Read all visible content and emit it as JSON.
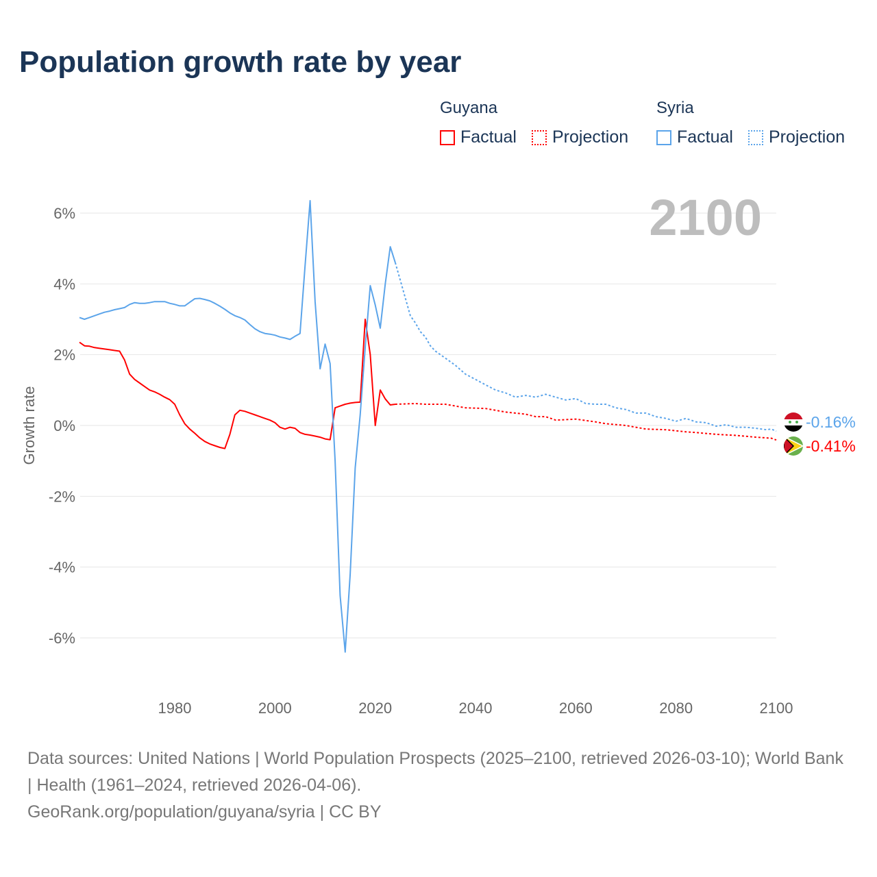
{
  "chart_data": {
    "type": "line",
    "title": "Population growth rate by year",
    "ylabel": "Growth rate",
    "xlabel": "",
    "xlim": [
      1961,
      2100
    ],
    "ylim": [
      -7,
      7
    ],
    "x_ticks": [
      1980,
      2000,
      2020,
      2040,
      2060,
      2080,
      2100
    ],
    "y_ticks": [
      6,
      4,
      2,
      0,
      -2,
      -4,
      -6
    ],
    "y_tick_labels": [
      "6%",
      "4%",
      "2%",
      "0%",
      "-2%",
      "-4%",
      "-6%"
    ],
    "x_tick_labels": [
      "1980",
      "2000",
      "2020",
      "2040",
      "2060",
      "2080",
      "2100"
    ],
    "grid": true,
    "legend_position": "top-right",
    "year_watermark": "2100",
    "legend": {
      "groups": [
        {
          "name": "Guyana",
          "items": [
            "Factual",
            "Projection"
          ]
        },
        {
          "name": "Syria",
          "items": [
            "Factual",
            "Projection"
          ]
        }
      ]
    },
    "series": [
      {
        "name": "Guyana",
        "kind": "Factual",
        "color": "#ff0000",
        "style": "solid",
        "x": [
          1961,
          1962,
          1963,
          1964,
          1965,
          1966,
          1967,
          1968,
          1969,
          1970,
          1971,
          1972,
          1973,
          1974,
          1975,
          1976,
          1977,
          1978,
          1979,
          1980,
          1981,
          1982,
          1983,
          1984,
          1985,
          1986,
          1987,
          1988,
          1989,
          1990,
          1991,
          1992,
          1993,
          1994,
          1995,
          1996,
          1997,
          1998,
          1999,
          2000,
          2001,
          2002,
          2003,
          2004,
          2005,
          2006,
          2007,
          2008,
          2009,
          2010,
          2011,
          2012,
          2013,
          2014,
          2015,
          2016,
          2017,
          2018,
          2019,
          2020,
          2021,
          2022,
          2023,
          2024
        ],
        "y": [
          2.35,
          2.25,
          2.24,
          2.2,
          2.18,
          2.16,
          2.14,
          2.12,
          2.1,
          1.85,
          1.45,
          1.3,
          1.2,
          1.1,
          1.0,
          0.95,
          0.88,
          0.8,
          0.73,
          0.6,
          0.3,
          0.05,
          -0.1,
          -0.22,
          -0.35,
          -0.45,
          -0.52,
          -0.57,
          -0.62,
          -0.65,
          -0.25,
          0.3,
          0.43,
          0.4,
          0.35,
          0.3,
          0.25,
          0.2,
          0.15,
          0.08,
          -0.05,
          -0.1,
          -0.05,
          -0.08,
          -0.2,
          -0.25,
          -0.27,
          -0.3,
          -0.33,
          -0.38,
          -0.4,
          0.5,
          0.55,
          0.6,
          0.63,
          0.65,
          0.66,
          3.0,
          2.0,
          0.0,
          1.0,
          0.75,
          0.58,
          0.6
        ]
      },
      {
        "name": "Guyana",
        "kind": "Projection",
        "color": "#ff0000",
        "style": "dotted",
        "x": [
          2024,
          2028,
          2030,
          2034,
          2036,
          2038,
          2042,
          2046,
          2050,
          2052,
          2054,
          2056,
          2060,
          2064,
          2066,
          2070,
          2072,
          2074,
          2078,
          2082,
          2084,
          2088,
          2092,
          2096,
          2099,
          2100
        ],
        "y": [
          0.6,
          0.62,
          0.6,
          0.6,
          0.55,
          0.5,
          0.48,
          0.38,
          0.32,
          0.25,
          0.25,
          0.15,
          0.18,
          0.1,
          0.05,
          0.0,
          -0.05,
          -0.1,
          -0.12,
          -0.18,
          -0.2,
          -0.25,
          -0.28,
          -0.33,
          -0.36,
          -0.41
        ]
      },
      {
        "name": "Syria",
        "kind": "Factual",
        "color": "#5ba4ea",
        "style": "solid",
        "x": [
          1961,
          1962,
          1963,
          1964,
          1965,
          1966,
          1967,
          1968,
          1969,
          1970,
          1971,
          1972,
          1973,
          1974,
          1975,
          1976,
          1977,
          1978,
          1979,
          1980,
          1981,
          1982,
          1983,
          1984,
          1985,
          1986,
          1987,
          1988,
          1989,
          1990,
          1991,
          1992,
          1993,
          1994,
          1995,
          1996,
          1997,
          1998,
          1999,
          2000,
          2001,
          2002,
          2003,
          2004,
          2005,
          2006,
          2007,
          2008,
          2009,
          2010,
          2011,
          2012,
          2013,
          2014,
          2015,
          2016,
          2017,
          2018,
          2019,
          2020,
          2021,
          2022,
          2023,
          2024
        ],
        "y": [
          3.05,
          3.0,
          3.05,
          3.1,
          3.15,
          3.2,
          3.23,
          3.27,
          3.3,
          3.33,
          3.42,
          3.47,
          3.45,
          3.45,
          3.47,
          3.5,
          3.5,
          3.5,
          3.45,
          3.42,
          3.38,
          3.38,
          3.48,
          3.58,
          3.59,
          3.56,
          3.52,
          3.45,
          3.37,
          3.28,
          3.18,
          3.1,
          3.05,
          2.98,
          2.85,
          2.73,
          2.65,
          2.6,
          2.58,
          2.55,
          2.5,
          2.47,
          2.43,
          2.52,
          2.6,
          4.5,
          6.35,
          3.5,
          1.6,
          2.3,
          1.75,
          -1.0,
          -4.8,
          -6.4,
          -4.2,
          -1.2,
          0.3,
          2.2,
          3.95,
          3.4,
          2.75,
          4.0,
          5.05,
          4.6
        ]
      },
      {
        "name": "Syria",
        "kind": "Projection",
        "color": "#5ba4ea",
        "style": "dotted",
        "x": [
          2024,
          2025,
          2026,
          2027,
          2028,
          2029,
          2030,
          2031,
          2032,
          2034,
          2036,
          2038,
          2040,
          2042,
          2044,
          2046,
          2048,
          2050,
          2052,
          2054,
          2056,
          2058,
          2060,
          2062,
          2064,
          2066,
          2068,
          2070,
          2072,
          2074,
          2076,
          2078,
          2080,
          2082,
          2084,
          2086,
          2088,
          2090,
          2092,
          2094,
          2096,
          2098,
          2099,
          2100
        ],
        "y": [
          4.6,
          4.1,
          3.6,
          3.1,
          2.9,
          2.65,
          2.5,
          2.25,
          2.1,
          1.9,
          1.7,
          1.45,
          1.3,
          1.15,
          1.0,
          0.92,
          0.8,
          0.85,
          0.8,
          0.88,
          0.8,
          0.72,
          0.76,
          0.62,
          0.6,
          0.6,
          0.5,
          0.45,
          0.35,
          0.35,
          0.25,
          0.2,
          0.12,
          0.2,
          0.1,
          0.08,
          -0.02,
          0.02,
          -0.05,
          -0.05,
          -0.08,
          -0.12,
          -0.1,
          -0.16
        ]
      }
    ],
    "end_labels": [
      {
        "country": "Syria",
        "value": "-0.16%",
        "color": "#5ba4ea",
        "flag": "syria-flag"
      },
      {
        "country": "Guyana",
        "value": "-0.41%",
        "color": "#ff0000",
        "flag": "guyana-flag"
      }
    ]
  },
  "footer": {
    "sources": "Data sources: United Nations | World Population Prospects (2025–2100, retrieved 2026-03-10); World Bank | Health (1961–2024, retrieved 2026-04-06).",
    "credit": "GeoRank.org/population/guyana/syria | CC BY"
  }
}
